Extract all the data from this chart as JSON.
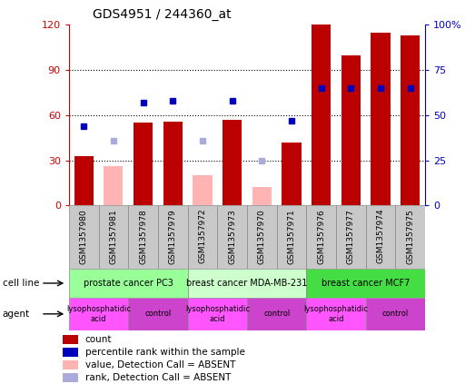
{
  "title": "GDS4951 / 244360_at",
  "samples": [
    "GSM1357980",
    "GSM1357981",
    "GSM1357978",
    "GSM1357979",
    "GSM1357972",
    "GSM1357973",
    "GSM1357970",
    "GSM1357971",
    "GSM1357976",
    "GSM1357977",
    "GSM1357974",
    "GSM1357975"
  ],
  "count_present": [
    33,
    null,
    55,
    56,
    null,
    57,
    null,
    42,
    120,
    100,
    115,
    113
  ],
  "count_absent": [
    null,
    26,
    null,
    null,
    20,
    null,
    12,
    null,
    null,
    null,
    null,
    null
  ],
  "rank_present": [
    44,
    null,
    57,
    58,
    null,
    58,
    null,
    47,
    65,
    65,
    65,
    65
  ],
  "rank_absent": [
    null,
    36,
    null,
    null,
    36,
    null,
    25,
    null,
    null,
    null,
    null,
    null
  ],
  "ylim_left": [
    0,
    120
  ],
  "ylim_right": [
    0,
    100
  ],
  "yticks_left": [
    0,
    30,
    60,
    90,
    120
  ],
  "yticks_right": [
    0,
    25,
    50,
    75,
    100
  ],
  "ytick_labels_right": [
    "0",
    "25",
    "50",
    "75",
    "100%"
  ],
  "color_count_present": "#bb0000",
  "color_count_absent": "#ffb3b3",
  "color_rank_present": "#0000bb",
  "color_rank_absent": "#aaaadd",
  "cell_line_groups": [
    {
      "label": "prostate cancer PC3",
      "start": 0,
      "end": 4,
      "color": "#99ff99"
    },
    {
      "label": "breast cancer MDA-MB-231",
      "start": 4,
      "end": 8,
      "color": "#ccffcc"
    },
    {
      "label": "breast cancer MCF7",
      "start": 8,
      "end": 12,
      "color": "#44dd44"
    }
  ],
  "agent_groups": [
    {
      "label": "lysophosphatidic\nacid",
      "start": 0,
      "end": 2,
      "color": "#ff55ff"
    },
    {
      "label": "control",
      "start": 2,
      "end": 4,
      "color": "#cc44cc"
    },
    {
      "label": "lysophosphatidic\nacid",
      "start": 4,
      "end": 6,
      "color": "#ff55ff"
    },
    {
      "label": "control",
      "start": 6,
      "end": 8,
      "color": "#cc44cc"
    },
    {
      "label": "lysophosphatidic\nacid",
      "start": 8,
      "end": 10,
      "color": "#ff55ff"
    },
    {
      "label": "control",
      "start": 10,
      "end": 12,
      "color": "#cc44cc"
    }
  ],
  "legend_items": [
    {
      "label": "count",
      "color": "#bb0000"
    },
    {
      "label": "percentile rank within the sample",
      "color": "#0000bb"
    },
    {
      "label": "value, Detection Call = ABSENT",
      "color": "#ffb3b3"
    },
    {
      "label": "rank, Detection Call = ABSENT",
      "color": "#aaaadd"
    }
  ],
  "bar_width": 0.65,
  "rank_marker_size": 5,
  "background_color": "#ffffff",
  "left_axis_color": "#cc0000",
  "right_axis_color": "#0000cc"
}
